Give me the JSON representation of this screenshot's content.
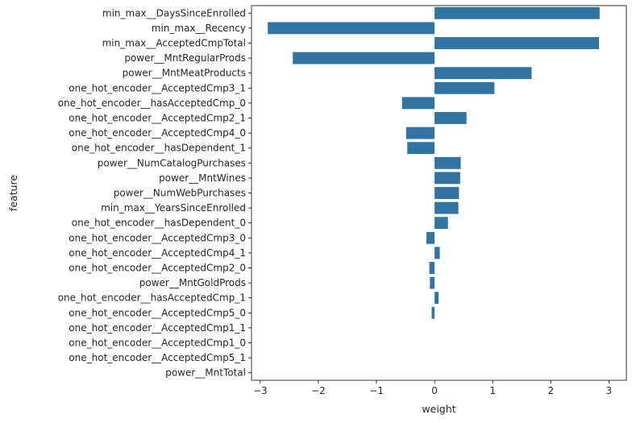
{
  "chart_data": {
    "type": "bar",
    "orientation": "horizontal",
    "xlabel": "weight",
    "ylabel": "feature",
    "xlim": [
      -3.15,
      3.3
    ],
    "xticks": [
      -3,
      -2,
      -1,
      0,
      1,
      2,
      3
    ],
    "bar_color": "#3274a1",
    "grid": false,
    "categories": [
      "min_max__DaysSinceEnrolled",
      "min_max__Recency",
      "min_max__AcceptedCmpTotal",
      "power__MntRegularProds",
      "power__MntMeatProducts",
      "one_hot_encoder__AcceptedCmp3_1",
      "one_hot_encoder__hasAcceptedCmp_0",
      "one_hot_encoder__AcceptedCmp2_1",
      "one_hot_encoder__AcceptedCmp4_0",
      "one_hot_encoder__hasDependent_1",
      "power__NumCatalogPurchases",
      "power__MntWines",
      "power__NumWebPurchases",
      "min_max__YearsSinceEnrolled",
      "one_hot_encoder__hasDependent_0",
      "one_hot_encoder__AcceptedCmp3_0",
      "one_hot_encoder__AcceptedCmp4_1",
      "one_hot_encoder__AcceptedCmp2_0",
      "power__MntGoldProds",
      "one_hot_encoder__hasAcceptedCmp_1",
      "one_hot_encoder__AcceptedCmp5_0",
      "one_hot_encoder__AcceptedCmp1_1",
      "one_hot_encoder__AcceptedCmp1_0",
      "one_hot_encoder__AcceptedCmp5_1",
      "power__MntTotal"
    ],
    "values": [
      2.84,
      -2.87,
      2.83,
      -2.44,
      1.67,
      1.03,
      -0.56,
      0.55,
      -0.49,
      -0.47,
      0.45,
      0.44,
      0.42,
      0.41,
      0.23,
      -0.14,
      0.09,
      -0.09,
      -0.08,
      0.07,
      -0.05,
      0.0,
      0.0,
      0.0,
      0.0
    ]
  }
}
